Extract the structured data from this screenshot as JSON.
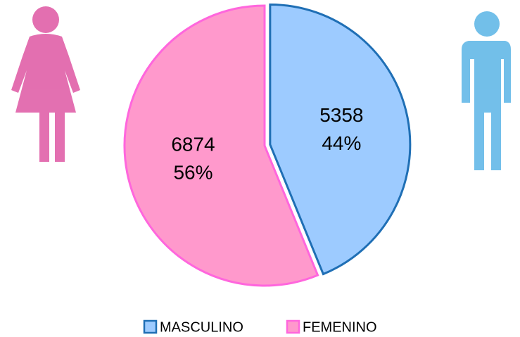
{
  "chart_data": {
    "type": "pie",
    "categories": [
      "MASCULINO",
      "FEMENINO"
    ],
    "values": [
      5358,
      6874
    ],
    "percentages": [
      {
        "value": 44,
        "label": "44%"
      },
      {
        "value": 56,
        "label": "56%"
      }
    ],
    "colors": [
      "#9dcbff",
      "#ff99cc"
    ],
    "edge_colors": [
      "#1f6fb5",
      "#ff66dd"
    ],
    "exploded": [
      true,
      false
    ],
    "legend": "bottom"
  }
}
